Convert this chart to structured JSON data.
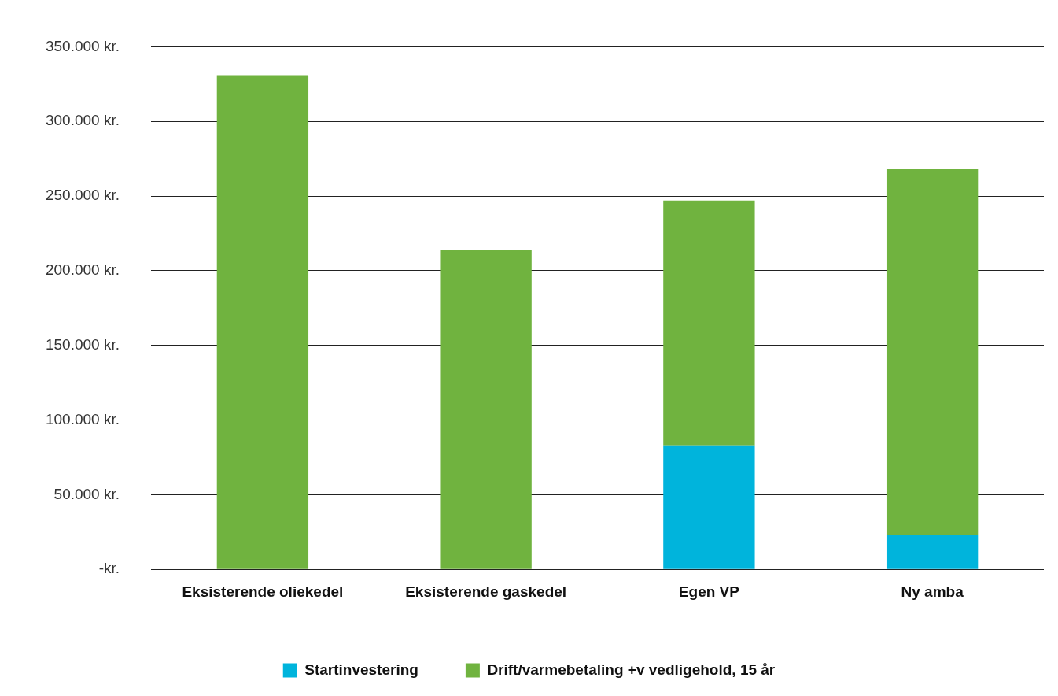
{
  "chart_data": {
    "type": "bar",
    "stacked": true,
    "categories": [
      "Eksisterende oliekedel",
      "Eksisterende gaskedel",
      "Egen VP",
      "Ny amba"
    ],
    "series": [
      {
        "name": "Startinvestering",
        "color": "#00b4dc",
        "values": [
          null,
          null,
          83000,
          23000
        ]
      },
      {
        "name": "Drift/varmebetaling +v vedligehold, 15 år",
        "color": "#70b33f",
        "values": [
          331000,
          214000,
          164000,
          245000
        ]
      }
    ],
    "ylim": [
      0,
      350000
    ],
    "yticks": [
      {
        "value": 0,
        "label": "-kr."
      },
      {
        "value": 50000,
        "label": "50.000 kr."
      },
      {
        "value": 100000,
        "label": "100.000 kr."
      },
      {
        "value": 150000,
        "label": "150.000 kr."
      },
      {
        "value": 200000,
        "label": "200.000 kr."
      },
      {
        "value": 250000,
        "label": "250.000 kr."
      },
      {
        "value": 300000,
        "label": "300.000 kr."
      },
      {
        "value": 350000,
        "label": "350.000 kr."
      }
    ],
    "grid": "y",
    "legend": "bottom"
  }
}
